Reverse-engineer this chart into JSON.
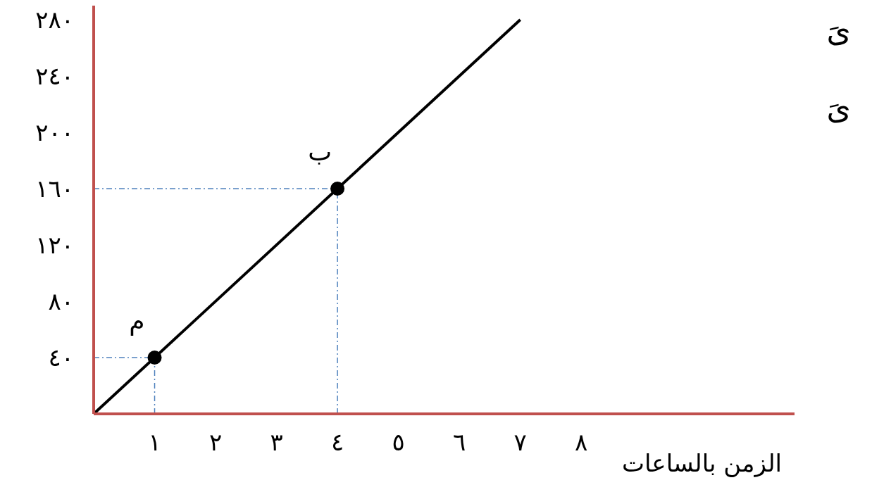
{
  "chart_data": {
    "type": "line",
    "xlabel": "الزمن بالساعات",
    "series": [
      {
        "color": "#000000",
        "x": [
          0,
          7
        ],
        "values": [
          0,
          280
        ],
        "marker": "none"
      },
      {
        "type": "scatter",
        "color": "#000000",
        "x": [
          1,
          4
        ],
        "values": [
          40,
          160
        ],
        "marker": "circle"
      }
    ],
    "xlim": [
      0,
      11.5
    ],
    "ylim": [
      0,
      290
    ],
    "xticks": [
      {
        "value": 1,
        "label": "١"
      },
      {
        "value": 2,
        "label": "٢"
      },
      {
        "value": 3,
        "label": "٣"
      },
      {
        "value": 4,
        "label": "٤"
      },
      {
        "value": 5,
        "label": "٥"
      },
      {
        "value": 6,
        "label": "٦"
      },
      {
        "value": 7,
        "label": "٧"
      },
      {
        "value": 8,
        "label": "٨"
      }
    ],
    "yticks": [
      {
        "value": 40,
        "label": "٤٠"
      },
      {
        "value": 80,
        "label": "٨٠"
      },
      {
        "value": 120,
        "label": "١٢٠"
      },
      {
        "value": 160,
        "label": "١٦٠"
      },
      {
        "value": 200,
        "label": "٢٠٠"
      },
      {
        "value": 240,
        "label": "٢٤٠"
      },
      {
        "value": 280,
        "label": "٢٨٠"
      }
    ],
    "ref_lines": [
      {
        "axis": "y",
        "value": 40,
        "color": "#4f81bd",
        "line_style": "dashdot"
      },
      {
        "axis": "x",
        "value": 1,
        "color": "#4f81bd",
        "line_style": "dashdot"
      },
      {
        "axis": "y",
        "value": 160,
        "color": "#4f81bd",
        "line_style": "dashdot"
      },
      {
        "axis": "x",
        "value": 4,
        "color": "#4f81bd",
        "line_style": "dashdot"
      }
    ],
    "annotations": [
      {
        "text": "م",
        "x": 1,
        "y": 40
      },
      {
        "text": "ب",
        "x": 4,
        "y": 160
      },
      "ىَ",
      "ىَ"
    ]
  }
}
